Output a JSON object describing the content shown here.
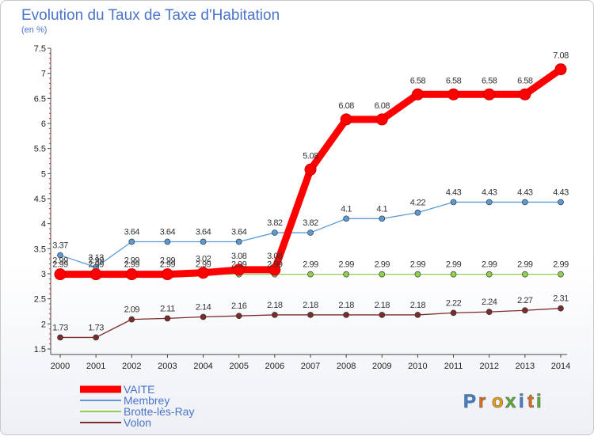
{
  "chart_data": {
    "type": "line",
    "title": "Evolution du Taux de Taxe d'Habitation",
    "subtitle": "(en %)",
    "xlabel": "",
    "ylabel": "",
    "x": [
      "2000",
      "2001",
      "2002",
      "2003",
      "2004",
      "2005",
      "2006",
      "2007",
      "2008",
      "2009",
      "2010",
      "2011",
      "2012",
      "2013",
      "2014"
    ],
    "ylim": [
      1.5,
      7.5
    ],
    "yticks": [
      "1.5",
      "2",
      "2.5",
      "3",
      "3.5",
      "4",
      "4.5",
      "5",
      "5.5",
      "6",
      "6.5",
      "7",
      "7.5"
    ],
    "grid": false,
    "legend_position": "bottom-left",
    "series": [
      {
        "name": "VAITE",
        "color": "#ff0000",
        "values": [
          2.99,
          2.99,
          2.99,
          2.99,
          3.02,
          3.08,
          3.08,
          5.08,
          6.08,
          6.08,
          6.58,
          6.58,
          6.58,
          6.58,
          7.08
        ],
        "labels": [
          "2.99",
          "2.99",
          "2.99",
          "2.99",
          "3.02",
          "3.08",
          "3.08",
          "5.08",
          "6.08",
          "6.08",
          "6.58",
          "6.58",
          "6.58",
          "6.58",
          "7.08"
        ]
      },
      {
        "name": "Membrey",
        "color": "#5b9bd5",
        "values": [
          3.37,
          3.13,
          3.64,
          3.64,
          3.64,
          3.64,
          3.82,
          3.82,
          4.1,
          4.1,
          4.22,
          4.43,
          4.43,
          4.43,
          4.43
        ],
        "labels": [
          "3.37",
          "3.13",
          "3.64",
          "3.64",
          "3.64",
          "3.64",
          "3.82",
          "3.82",
          "4.1",
          "4.1",
          "4.22",
          "4.43",
          "4.43",
          "4.43",
          "4.43"
        ]
      },
      {
        "name": "Brotte-lès-Ray",
        "color": "#92d050",
        "values": [
          2.99,
          2.99,
          2.99,
          2.99,
          2.99,
          2.99,
          2.99,
          2.99,
          2.99,
          2.99,
          2.99,
          2.99,
          2.99,
          2.99,
          2.99
        ],
        "labels": [
          "2.99",
          "2.99",
          "2.99",
          "2.99",
          "2.99",
          "2.99",
          "2.99",
          "2.99",
          "2.99",
          "2.99",
          "2.99",
          "2.99",
          "2.99",
          "2.99",
          "2.99"
        ]
      },
      {
        "name": "Volon",
        "color": "#7b2c2c",
        "values": [
          1.73,
          1.73,
          2.09,
          2.11,
          2.14,
          2.16,
          2.18,
          2.18,
          2.18,
          2.18,
          2.18,
          2.22,
          2.24,
          2.27,
          2.31
        ],
        "labels": [
          "1.73",
          "1.73",
          "2.09",
          "2.11",
          "2.14",
          "2.16",
          "2.18",
          "2.18",
          "2.18",
          "2.18",
          "2.18",
          "2.22",
          "2.24",
          "2.27",
          "2.31"
        ]
      }
    ]
  },
  "brand": {
    "text": "Proxiti",
    "letter_colors": [
      "#3a7fd0",
      "#e36b1e",
      "#f0a000",
      "#5bb031",
      "#3a7fd0",
      "#e36b1e",
      "#5bb031"
    ]
  }
}
